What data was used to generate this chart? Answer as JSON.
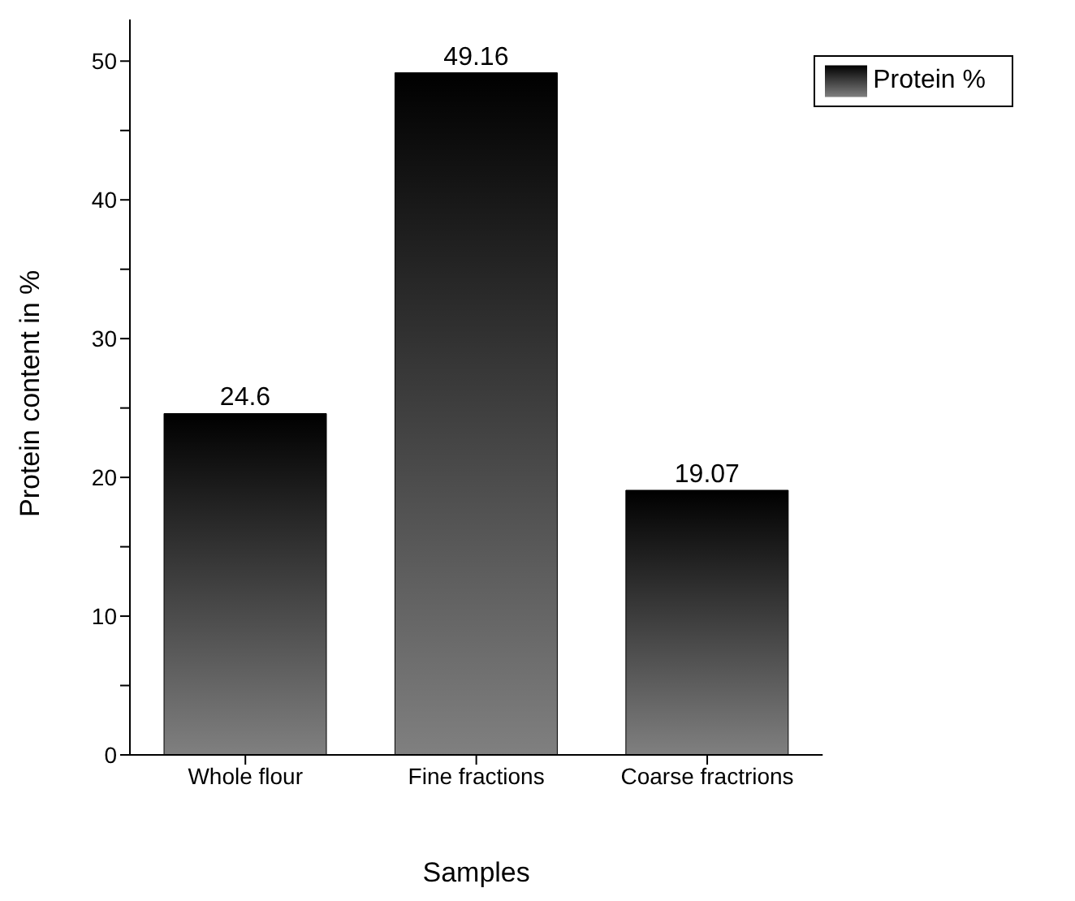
{
  "chart_data": {
    "type": "bar",
    "xlabel": "Samples",
    "ylabel": "Protein content in %",
    "categories": [
      "Whole flour",
      "Fine fractions",
      "Coarse fractrions"
    ],
    "series": [
      {
        "name": "Protein %",
        "color": "#000000",
        "values": [
          24.6,
          49.16,
          19.07
        ]
      }
    ],
    "ylim": [
      0,
      53
    ],
    "yticks": [
      0,
      {
        "value": 5,
        "label": null
      },
      10,
      {
        "value": 15,
        "label": null
      },
      20,
      {
        "value": 25,
        "label": null
      },
      30,
      {
        "value": 35,
        "label": null
      },
      40,
      {
        "value": 45,
        "label": null
      },
      50
    ],
    "data_labels": true,
    "legend": "top right",
    "grid": false
  }
}
